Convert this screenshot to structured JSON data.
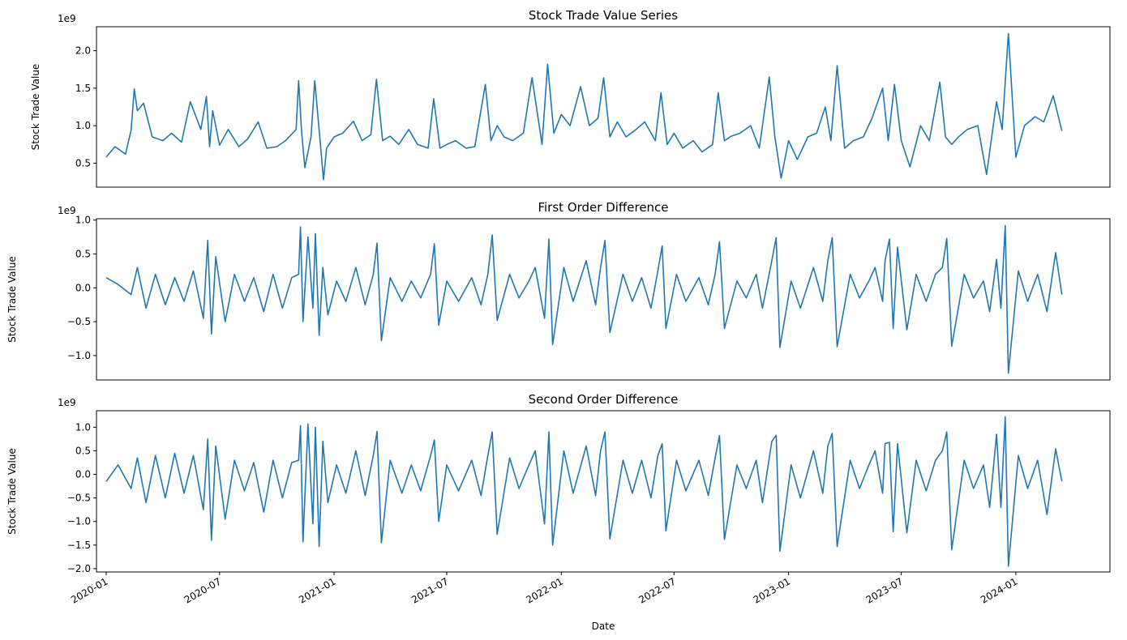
{
  "chart_data": {
    "type": "line",
    "color": "#1f77b4",
    "x_start": "2020-01-01",
    "x_end": "2024-03-31",
    "x_ticks": [
      "2020-01",
      "2020-07",
      "2021-01",
      "2021-07",
      "2022-01",
      "2022-07",
      "2023-01",
      "2023-07",
      "2024-01"
    ],
    "xlabel": "Date",
    "panels": [
      {
        "title": "Stock Trade Value Series",
        "ylabel": "Stock Trade Value",
        "offset_label": "1e9",
        "ylim": [
          0.18,
          2.32
        ],
        "yticks": [
          0.5,
          1.0,
          1.5,
          2.0
        ],
        "ytick_labels": [
          "0.5",
          "1.0",
          "1.5",
          "2.0"
        ],
        "series": {
          "x": [
            "2020-01-01",
            "2020-01-15",
            "2020-02-01",
            "2020-02-10",
            "2020-02-15",
            "2020-02-20",
            "2020-03-01",
            "2020-03-15",
            "2020-04-01",
            "2020-04-15",
            "2020-05-01",
            "2020-05-15",
            "2020-06-01",
            "2020-06-10",
            "2020-06-15",
            "2020-06-20",
            "2020-07-01",
            "2020-07-15",
            "2020-08-01",
            "2020-08-15",
            "2020-09-01",
            "2020-09-15",
            "2020-10-01",
            "2020-10-15",
            "2020-11-01",
            "2020-11-05",
            "2020-11-10",
            "2020-11-15",
            "2020-11-25",
            "2020-12-01",
            "2020-12-10",
            "2020-12-15",
            "2020-12-20",
            "2021-01-01",
            "2021-01-15",
            "2021-02-01",
            "2021-02-15",
            "2021-03-01",
            "2021-03-10",
            "2021-03-20",
            "2021-04-01",
            "2021-04-15",
            "2021-05-01",
            "2021-05-15",
            "2021-06-01",
            "2021-06-10",
            "2021-06-20",
            "2021-07-01",
            "2021-07-15",
            "2021-08-01",
            "2021-08-15",
            "2021-09-01",
            "2021-09-10",
            "2021-09-20",
            "2021-10-01",
            "2021-10-15",
            "2021-11-01",
            "2021-11-15",
            "2021-12-01",
            "2021-12-10",
            "2021-12-20",
            "2022-01-01",
            "2022-01-15",
            "2022-02-01",
            "2022-02-15",
            "2022-03-01",
            "2022-03-10",
            "2022-03-20",
            "2022-04-01",
            "2022-04-15",
            "2022-05-01",
            "2022-05-15",
            "2022-06-01",
            "2022-06-10",
            "2022-06-20",
            "2022-07-01",
            "2022-07-15",
            "2022-08-01",
            "2022-08-15",
            "2022-09-01",
            "2022-09-10",
            "2022-09-20",
            "2022-10-01",
            "2022-10-15",
            "2022-11-01",
            "2022-11-15",
            "2022-12-01",
            "2022-12-10",
            "2022-12-20",
            "2023-01-01",
            "2023-01-15",
            "2023-02-01",
            "2023-02-15",
            "2023-03-01",
            "2023-03-10",
            "2023-03-20",
            "2023-04-01",
            "2023-04-15",
            "2023-05-01",
            "2023-05-15",
            "2023-06-01",
            "2023-06-10",
            "2023-06-20",
            "2023-07-01",
            "2023-07-15",
            "2023-08-01",
            "2023-08-15",
            "2023-09-01",
            "2023-09-10",
            "2023-09-20",
            "2023-10-01",
            "2023-10-15",
            "2023-11-01",
            "2023-11-15",
            "2023-12-01",
            "2023-12-10",
            "2023-12-20",
            "2024-01-01",
            "2024-01-15",
            "2024-02-01",
            "2024-02-15",
            "2024-03-01",
            "2024-03-15"
          ],
          "values": [
            0.58,
            0.72,
            0.62,
            0.94,
            1.49,
            1.2,
            1.3,
            0.85,
            0.8,
            0.9,
            0.78,
            1.32,
            0.95,
            1.39,
            0.72,
            1.2,
            0.74,
            0.95,
            0.72,
            0.82,
            1.05,
            0.7,
            0.72,
            0.8,
            0.95,
            1.6,
            0.9,
            0.44,
            0.85,
            1.6,
            0.75,
            0.28,
            0.7,
            0.85,
            0.9,
            1.06,
            0.8,
            0.88,
            1.62,
            0.8,
            0.86,
            0.75,
            0.95,
            0.75,
            0.7,
            1.36,
            0.7,
            0.75,
            0.8,
            0.7,
            0.72,
            1.55,
            0.8,
            1.0,
            0.85,
            0.8,
            0.9,
            1.64,
            0.75,
            1.82,
            0.9,
            1.15,
            1.0,
            1.52,
            1.0,
            1.1,
            1.64,
            0.85,
            1.05,
            0.85,
            0.95,
            1.05,
            0.8,
            1.44,
            0.75,
            0.9,
            0.7,
            0.8,
            0.65,
            0.75,
            1.44,
            0.8,
            0.86,
            0.9,
            1.0,
            0.7,
            1.65,
            0.85,
            0.3,
            0.8,
            0.55,
            0.85,
            0.9,
            1.25,
            0.8,
            1.8,
            0.7,
            0.8,
            0.85,
            1.1,
            1.5,
            0.8,
            1.55,
            0.8,
            0.45,
            1.0,
            0.8,
            1.58,
            0.85,
            0.75,
            0.85,
            0.95,
            1.0,
            0.35,
            1.32,
            0.95,
            2.23,
            0.58,
            1.0,
            1.12,
            1.05,
            1.4,
            0.93
          ]
        }
      },
      {
        "title": "First Order Difference",
        "ylabel": "Stock Trade Value",
        "offset_label": "1e9",
        "ylim": [
          -1.36,
          1.02
        ],
        "yticks": [
          -1.0,
          -0.5,
          0.0,
          0.5,
          1.0
        ],
        "ytick_labels": [
          "−1.0",
          "−0.5",
          "0.0",
          "0.5",
          "1.0"
        ],
        "series": {
          "x": [
            "2020-01-01",
            "2020-01-20",
            "2020-02-10",
            "2020-02-20",
            "2020-03-05",
            "2020-03-20",
            "2020-04-05",
            "2020-04-20",
            "2020-05-05",
            "2020-05-20",
            "2020-06-05",
            "2020-06-12",
            "2020-06-18",
            "2020-06-25",
            "2020-07-10",
            "2020-07-25",
            "2020-08-10",
            "2020-08-25",
            "2020-09-10",
            "2020-09-25",
            "2020-10-10",
            "2020-10-25",
            "2020-11-05",
            "2020-11-08",
            "2020-11-12",
            "2020-11-20",
            "2020-11-28",
            "2020-12-02",
            "2020-12-08",
            "2020-12-14",
            "2020-12-22",
            "2021-01-05",
            "2021-01-20",
            "2021-02-05",
            "2021-02-20",
            "2021-03-05",
            "2021-03-11",
            "2021-03-18",
            "2021-04-01",
            "2021-04-20",
            "2021-05-05",
            "2021-05-20",
            "2021-06-05",
            "2021-06-11",
            "2021-06-18",
            "2021-07-01",
            "2021-07-20",
            "2021-08-10",
            "2021-08-25",
            "2021-09-05",
            "2021-09-12",
            "2021-09-20",
            "2021-10-10",
            "2021-10-25",
            "2021-11-10",
            "2021-11-20",
            "2021-12-05",
            "2021-12-12",
            "2021-12-18",
            "2022-01-05",
            "2022-01-20",
            "2022-02-10",
            "2022-02-25",
            "2022-03-05",
            "2022-03-12",
            "2022-03-20",
            "2022-04-10",
            "2022-04-25",
            "2022-05-10",
            "2022-05-25",
            "2022-06-05",
            "2022-06-12",
            "2022-06-18",
            "2022-07-05",
            "2022-07-20",
            "2022-08-10",
            "2022-08-25",
            "2022-09-05",
            "2022-09-12",
            "2022-09-20",
            "2022-10-10",
            "2022-10-25",
            "2022-11-10",
            "2022-11-20",
            "2022-12-05",
            "2022-12-12",
            "2022-12-18",
            "2023-01-05",
            "2023-01-20",
            "2023-02-10",
            "2023-02-25",
            "2023-03-05",
            "2023-03-12",
            "2023-03-20",
            "2023-04-10",
            "2023-04-25",
            "2023-05-10",
            "2023-05-20",
            "2023-06-01",
            "2023-06-05",
            "2023-06-12",
            "2023-06-18",
            "2023-06-25",
            "2023-07-10",
            "2023-07-25",
            "2023-08-10",
            "2023-08-25",
            "2023-09-05",
            "2023-09-12",
            "2023-09-20",
            "2023-10-10",
            "2023-10-25",
            "2023-11-10",
            "2023-11-20",
            "2023-12-01",
            "2023-12-08",
            "2023-12-15",
            "2023-12-20",
            "2024-01-05",
            "2024-01-20",
            "2024-02-05",
            "2024-02-20",
            "2024-03-05",
            "2024-03-15"
          ],
          "values": [
            0.15,
            0.05,
            -0.1,
            0.3,
            -0.3,
            0.2,
            -0.25,
            0.15,
            -0.2,
            0.25,
            -0.45,
            0.7,
            -0.68,
            0.46,
            -0.5,
            0.2,
            -0.2,
            0.15,
            -0.35,
            0.2,
            -0.3,
            0.15,
            0.2,
            0.9,
            -0.5,
            0.75,
            -0.3,
            0.8,
            -0.7,
            0.3,
            -0.4,
            0.1,
            -0.2,
            0.3,
            -0.25,
            0.2,
            0.66,
            -0.78,
            0.15,
            -0.2,
            0.1,
            -0.15,
            0.2,
            0.65,
            -0.55,
            0.1,
            -0.2,
            0.15,
            -0.25,
            0.2,
            0.78,
            -0.48,
            0.2,
            -0.15,
            0.1,
            0.3,
            -0.45,
            0.72,
            -0.84,
            0.3,
            -0.2,
            0.4,
            -0.25,
            0.3,
            0.7,
            -0.66,
            0.2,
            -0.2,
            0.15,
            -0.3,
            0.25,
            0.62,
            -0.6,
            0.2,
            -0.2,
            0.15,
            -0.25,
            0.2,
            0.68,
            -0.6,
            0.1,
            -0.15,
            0.2,
            -0.3,
            0.4,
            0.74,
            -0.88,
            0.1,
            -0.3,
            0.3,
            -0.2,
            0.4,
            0.74,
            -0.87,
            0.2,
            -0.15,
            0.1,
            0.3,
            -0.2,
            0.4,
            0.72,
            -0.6,
            0.6,
            -0.62,
            0.2,
            -0.2,
            0.2,
            0.3,
            0.73,
            -0.86,
            0.2,
            -0.15,
            0.1,
            -0.35,
            0.42,
            -0.3,
            0.92,
            -1.26,
            0.25,
            -0.2,
            0.2,
            -0.35,
            0.52,
            -0.1
          ]
        }
      },
      {
        "title": "Second Order Difference",
        "ylabel": "Stock Trade Value",
        "offset_label": "1e9",
        "ylim": [
          -2.07,
          1.35
        ],
        "yticks": [
          -2.0,
          -1.5,
          -1.0,
          -0.5,
          0.0,
          0.5,
          1.0
        ],
        "ytick_labels": [
          "−2.0",
          "−1.5",
          "−1.0",
          "−0.5",
          "0.0",
          "0.5",
          "1.0"
        ],
        "series": {
          "x": [
            "2020-01-01",
            "2020-01-20",
            "2020-02-10",
            "2020-02-20",
            "2020-03-05",
            "2020-03-20",
            "2020-04-05",
            "2020-04-20",
            "2020-05-05",
            "2020-05-20",
            "2020-06-05",
            "2020-06-12",
            "2020-06-18",
            "2020-06-25",
            "2020-07-10",
            "2020-07-25",
            "2020-08-10",
            "2020-08-25",
            "2020-09-10",
            "2020-09-25",
            "2020-10-10",
            "2020-10-25",
            "2020-11-05",
            "2020-11-08",
            "2020-11-12",
            "2020-11-20",
            "2020-11-28",
            "2020-12-02",
            "2020-12-08",
            "2020-12-14",
            "2020-12-22",
            "2021-01-05",
            "2021-01-20",
            "2021-02-05",
            "2021-02-20",
            "2021-03-05",
            "2021-03-11",
            "2021-03-18",
            "2021-04-01",
            "2021-04-20",
            "2021-05-05",
            "2021-05-20",
            "2021-06-05",
            "2021-06-11",
            "2021-06-18",
            "2021-07-01",
            "2021-07-20",
            "2021-08-10",
            "2021-08-25",
            "2021-09-05",
            "2021-09-12",
            "2021-09-20",
            "2021-10-10",
            "2021-10-25",
            "2021-11-10",
            "2021-11-20",
            "2021-12-05",
            "2021-12-12",
            "2021-12-18",
            "2022-01-05",
            "2022-01-20",
            "2022-02-10",
            "2022-02-25",
            "2022-03-05",
            "2022-03-12",
            "2022-03-20",
            "2022-04-10",
            "2022-04-25",
            "2022-05-10",
            "2022-05-25",
            "2022-06-05",
            "2022-06-12",
            "2022-06-18",
            "2022-07-05",
            "2022-07-20",
            "2022-08-10",
            "2022-08-25",
            "2022-09-05",
            "2022-09-12",
            "2022-09-20",
            "2022-10-10",
            "2022-10-25",
            "2022-11-10",
            "2022-11-20",
            "2022-12-05",
            "2022-12-12",
            "2022-12-18",
            "2023-01-05",
            "2023-01-20",
            "2023-02-10",
            "2023-02-25",
            "2023-03-05",
            "2023-03-12",
            "2023-03-20",
            "2023-04-10",
            "2023-04-25",
            "2023-05-10",
            "2023-05-20",
            "2023-06-01",
            "2023-06-05",
            "2023-06-12",
            "2023-06-18",
            "2023-06-25",
            "2023-07-10",
            "2023-07-25",
            "2023-08-10",
            "2023-08-25",
            "2023-09-05",
            "2023-09-12",
            "2023-09-20",
            "2023-10-10",
            "2023-10-25",
            "2023-11-10",
            "2023-11-20",
            "2023-12-01",
            "2023-12-08",
            "2023-12-15",
            "2023-12-20",
            "2024-01-05",
            "2024-01-20",
            "2024-02-05",
            "2024-02-20",
            "2024-03-05",
            "2024-03-15"
          ],
          "values": [
            -0.15,
            0.2,
            -0.3,
            0.35,
            -0.6,
            0.4,
            -0.5,
            0.45,
            -0.4,
            0.4,
            -0.75,
            0.75,
            -1.4,
            0.6,
            -0.95,
            0.3,
            -0.35,
            0.25,
            -0.8,
            0.3,
            -0.5,
            0.25,
            0.3,
            1.03,
            -1.43,
            1.07,
            -1.05,
            1.0,
            -1.53,
            0.7,
            -0.6,
            0.2,
            -0.4,
            0.5,
            -0.45,
            0.4,
            0.91,
            -1.45,
            0.3,
            -0.4,
            0.2,
            -0.35,
            0.4,
            0.73,
            -1.0,
            0.2,
            -0.35,
            0.3,
            -0.45,
            0.4,
            0.9,
            -1.27,
            0.35,
            -0.3,
            0.2,
            0.5,
            -1.05,
            0.9,
            -1.5,
            0.5,
            -0.4,
            0.6,
            -0.45,
            0.5,
            0.9,
            -1.37,
            0.3,
            -0.4,
            0.3,
            -0.5,
            0.4,
            0.65,
            -1.2,
            0.3,
            -0.35,
            0.3,
            -0.45,
            0.35,
            0.82,
            -1.38,
            0.2,
            -0.3,
            0.3,
            -0.6,
            0.7,
            0.83,
            -1.63,
            0.2,
            -0.5,
            0.5,
            -0.4,
            0.6,
            0.87,
            -1.53,
            0.3,
            -0.3,
            0.2,
            0.5,
            -0.4,
            0.65,
            0.68,
            -1.22,
            0.65,
            -1.24,
            0.3,
            -0.35,
            0.3,
            0.5,
            0.9,
            -1.6,
            0.3,
            -0.3,
            0.2,
            -0.7,
            0.85,
            -0.7,
            1.22,
            -1.95,
            0.4,
            -0.3,
            0.3,
            -0.85,
            0.54,
            -0.15
          ]
        }
      }
    ]
  }
}
